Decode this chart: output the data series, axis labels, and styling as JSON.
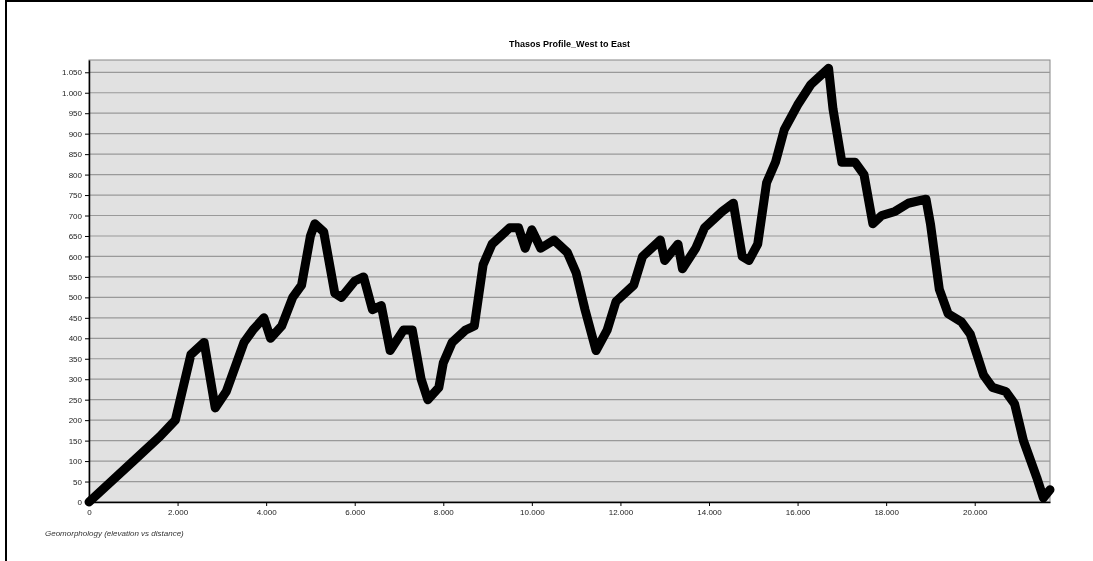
{
  "chart_data": {
    "type": "line",
    "title": "Thasos Profile_West to East",
    "annotations": [
      "Geomorphology (elevation vs distance)"
    ],
    "x": [
      0,
      1000,
      1600,
      1950,
      2300,
      2600,
      2850,
      3100,
      3500,
      3700,
      3950,
      4100,
      4350,
      4600,
      4800,
      5000,
      5100,
      5300,
      5550,
      5700,
      6000,
      6200,
      6400,
      6600,
      6800,
      7100,
      7300,
      7500,
      7650,
      7900,
      8000,
      8200,
      8500,
      8700,
      8900,
      9100,
      9500,
      9700,
      9850,
      10000,
      10200,
      10500,
      10800,
      11000,
      11200,
      11450,
      11700,
      11900,
      12300,
      12500,
      12900,
      13000,
      13300,
      13400,
      13700,
      13900,
      14300,
      14550,
      14750,
      14900,
      15100,
      15300,
      15500,
      15700,
      16000,
      16300,
      16700,
      16800,
      17000,
      17300,
      17500,
      17700,
      17900,
      18200,
      18500,
      18900,
      19000,
      19200,
      19400,
      19700,
      19900,
      20200,
      20400,
      20700,
      20900,
      21100,
      21400,
      21550,
      21700
    ],
    "series": [
      {
        "color": "#000000",
        "values": [
          0,
          100,
          160,
          200,
          360,
          390,
          230,
          270,
          390,
          420,
          450,
          400,
          430,
          500,
          530,
          650,
          680,
          660,
          510,
          500,
          540,
          550,
          470,
          480,
          370,
          420,
          420,
          300,
          250,
          280,
          340,
          390,
          420,
          430,
          580,
          630,
          670,
          670,
          620,
          665,
          620,
          640,
          610,
          560,
          470,
          370,
          420,
          490,
          530,
          600,
          640,
          590,
          630,
          570,
          620,
          670,
          710,
          730,
          600,
          590,
          630,
          780,
          830,
          910,
          970,
          1020,
          1060,
          960,
          830,
          830,
          800,
          680,
          700,
          710,
          730,
          740,
          680,
          520,
          460,
          440,
          410,
          310,
          280,
          270,
          240,
          150,
          60,
          10,
          30
        ]
      }
    ],
    "xlim": [
      0,
      21700
    ],
    "ylim": [
      0,
      1080
    ],
    "xticks": [
      0,
      {
        "value": 2000,
        "label": "2.000"
      },
      {
        "value": 4000,
        "label": "4.000"
      },
      {
        "value": 6000,
        "label": "6.000"
      },
      {
        "value": 8000,
        "label": "8.000"
      },
      {
        "value": 10000,
        "label": "10.000"
      },
      {
        "value": 12000,
        "label": "12.000"
      },
      {
        "value": 14000,
        "label": "14.000"
      },
      {
        "value": 16000,
        "label": "16.000"
      },
      {
        "value": 18000,
        "label": "18.000"
      },
      {
        "value": 20000,
        "label": "20.000"
      }
    ],
    "yticks": [
      0,
      50,
      100,
      150,
      200,
      250,
      300,
      350,
      400,
      450,
      500,
      550,
      600,
      650,
      700,
      750,
      800,
      850,
      900,
      950,
      {
        "value": 1000,
        "label": "1.000"
      },
      {
        "value": 1050,
        "label": "1.050"
      }
    ],
    "grid": "y",
    "line_style": "solid"
  }
}
